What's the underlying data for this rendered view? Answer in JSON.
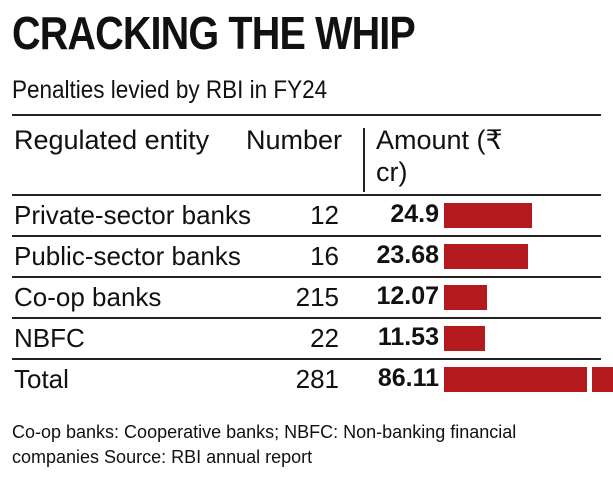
{
  "title": "CRACKING THE WHIP",
  "subtitle": "Penalties levied by RBI in FY24",
  "headers": {
    "entity": "Regulated entity",
    "number": "Number",
    "amount": "Amount (₹ cr)"
  },
  "chart_data": {
    "type": "table",
    "columns": [
      "Regulated entity",
      "Number",
      "Amount (₹ cr)"
    ],
    "rows": [
      {
        "entity": "Private-sector banks",
        "number": "12",
        "amount": "24.9",
        "value": 24.9
      },
      {
        "entity": "Public-sector banks",
        "number": "16",
        "amount": "23.68",
        "value": 23.68
      },
      {
        "entity": "Co-op banks",
        "number": "215",
        "amount": "12.07",
        "value": 12.07
      },
      {
        "entity": "NBFC",
        "number": "22",
        "amount": "11.53",
        "value": 11.53
      },
      {
        "entity": "Total",
        "number": "281",
        "amount": "86.11",
        "value": 86.11
      }
    ],
    "bar_color": "#b3191d"
  },
  "note": "Co-op banks: Cooperative banks; NBFC: Non-banking financial companies Source: RBI annual report"
}
